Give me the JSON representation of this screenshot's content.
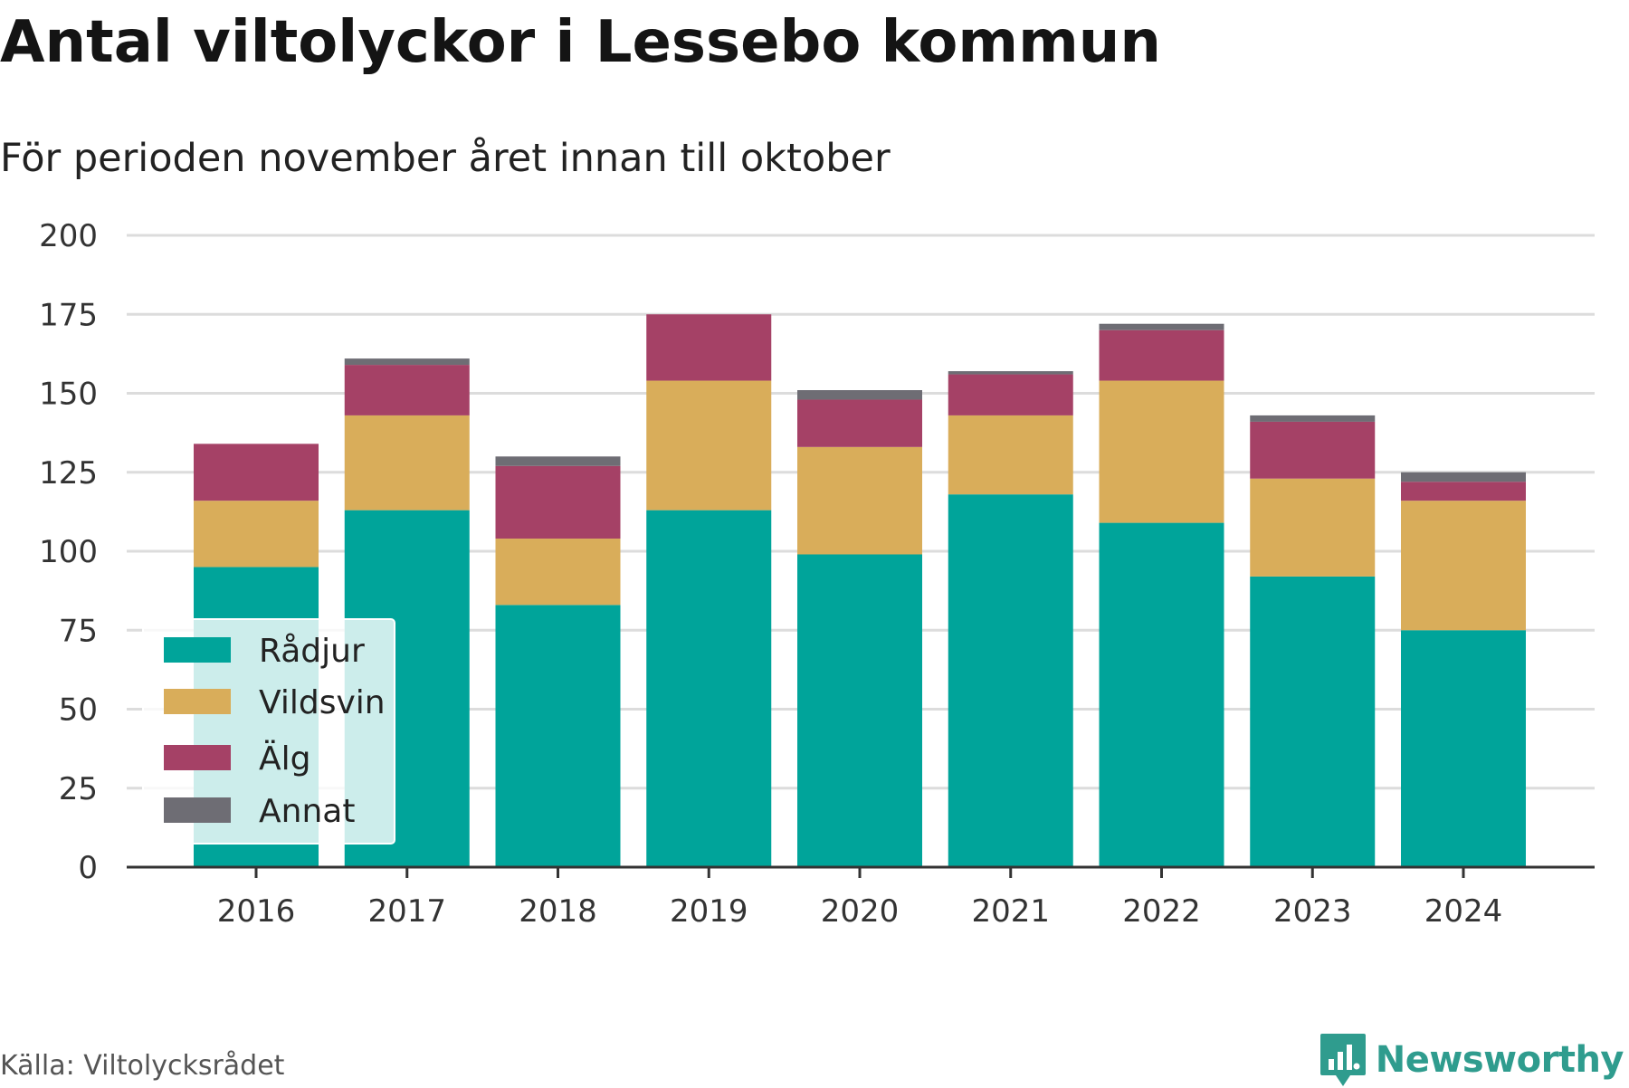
{
  "title": "Antal viltolyckor i Lessebo kommun",
  "subtitle": "För perioden november året innan till oktober",
  "source": "Källa: Viltolycksrådet",
  "brand": "Newsworthy",
  "chart_data": {
    "type": "bar",
    "stacked": true,
    "categories": [
      "2016",
      "2017",
      "2018",
      "2019",
      "2020",
      "2021",
      "2022",
      "2023",
      "2024"
    ],
    "series": [
      {
        "name": "Rådjur",
        "color": "#00a49a",
        "values": [
          95,
          113,
          83,
          113,
          99,
          118,
          109,
          92,
          75
        ]
      },
      {
        "name": "Vildsvin",
        "color": "#d9ad5a",
        "values": [
          21,
          30,
          21,
          41,
          34,
          25,
          45,
          31,
          41
        ]
      },
      {
        "name": "Älg",
        "color": "#a54166",
        "values": [
          18,
          16,
          23,
          21,
          15,
          13,
          16,
          18,
          6
        ]
      },
      {
        "name": "Annat",
        "color": "#6e6d74",
        "values": [
          0,
          2,
          3,
          0,
          3,
          1,
          2,
          2,
          3
        ]
      }
    ],
    "ylim": [
      0,
      200
    ],
    "yticks": [
      0,
      25,
      50,
      75,
      100,
      125,
      150,
      175,
      200
    ],
    "grid": true,
    "legend_position": "bottom-left"
  }
}
